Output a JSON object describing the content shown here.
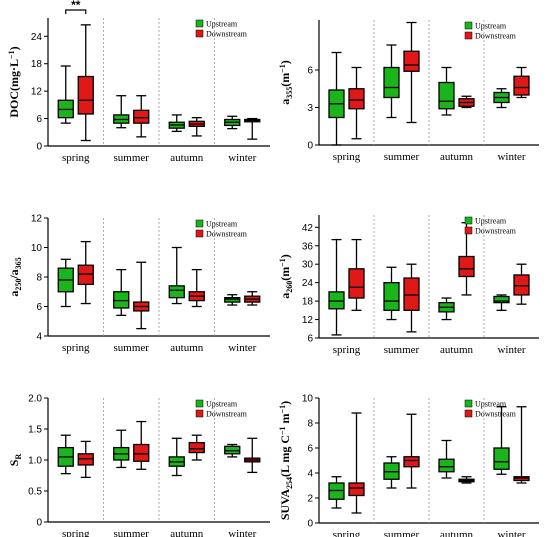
{
  "colors": {
    "upstream": "#1ab51a",
    "downstream": "#e01818",
    "divider": "#999999"
  },
  "chart_data": [
    {
      "type": "box",
      "ylabel": {
        "main": "DOC",
        "sub": "",
        "unit": "(mg·L",
        "unit_sup": "−1",
        "unit_end": ")"
      },
      "categories": [
        "spring",
        "summer",
        "autumn",
        "winter"
      ],
      "ylim": [
        0,
        28
      ],
      "yticks": [
        0,
        6,
        12,
        18,
        24
      ],
      "legend": {
        "entries": [
          "Upstream",
          "Downstream"
        ],
        "placement": "top-right"
      },
      "annotation": {
        "text": "**",
        "category": "spring"
      },
      "series": [
        {
          "name": "Upstream",
          "boxes": [
            {
              "min": 5.0,
              "q1": 6.2,
              "median": 8.0,
              "q3": 10.0,
              "max": 17.5
            },
            {
              "min": 4.0,
              "q1": 5.0,
              "median": 5.8,
              "q3": 6.8,
              "max": 11.0
            },
            {
              "min": 3.2,
              "q1": 3.9,
              "median": 4.6,
              "q3": 5.2,
              "max": 6.8
            },
            {
              "min": 3.8,
              "q1": 4.5,
              "median": 5.2,
              "q3": 5.8,
              "max": 6.5
            }
          ]
        },
        {
          "name": "Downstream",
          "boxes": [
            {
              "min": 1.2,
              "q1": 7.0,
              "median": 10.0,
              "q3": 15.2,
              "max": 26.5
            },
            {
              "min": 2.0,
              "q1": 5.0,
              "median": 6.2,
              "q3": 7.8,
              "max": 11.0
            },
            {
              "min": 2.2,
              "q1": 4.3,
              "median": 4.8,
              "q3": 5.4,
              "max": 6.2
            },
            {
              "min": 1.5,
              "q1": 5.3,
              "median": 5.6,
              "q3": 5.8,
              "max": 6.0
            }
          ]
        }
      ]
    },
    {
      "type": "box",
      "ylabel": {
        "main": "a",
        "sub": "355",
        "unit": "(m",
        "unit_sup": "−1",
        "unit_end": ")"
      },
      "categories": [
        "spring",
        "summer",
        "autumn",
        "winter"
      ],
      "ylim": [
        0,
        10
      ],
      "yticks": [
        0,
        3,
        6
      ],
      "legend": {
        "entries": [
          "Upstream",
          "Downstream"
        ],
        "placement": "top-right"
      },
      "series": [
        {
          "name": "Upstream",
          "boxes": [
            {
              "min": 0.0,
              "q1": 2.2,
              "median": 3.3,
              "q3": 4.4,
              "max": 7.4
            },
            {
              "min": 2.2,
              "q1": 3.8,
              "median": 4.6,
              "q3": 6.2,
              "max": 8.0
            },
            {
              "min": 2.4,
              "q1": 2.9,
              "median": 3.5,
              "q3": 5.0,
              "max": 6.2
            },
            {
              "min": 3.0,
              "q1": 3.4,
              "median": 3.8,
              "q3": 4.2,
              "max": 4.5
            }
          ]
        },
        {
          "name": "Downstream",
          "boxes": [
            {
              "min": 0.5,
              "q1": 2.9,
              "median": 3.6,
              "q3": 4.5,
              "max": 6.2
            },
            {
              "min": 1.8,
              "q1": 5.9,
              "median": 6.4,
              "q3": 7.5,
              "max": 9.8
            },
            {
              "min": 3.0,
              "q1": 3.1,
              "median": 3.4,
              "q3": 3.7,
              "max": 3.9
            },
            {
              "min": 3.8,
              "q1": 4.0,
              "median": 4.6,
              "q3": 5.5,
              "max": 6.2
            }
          ]
        }
      ]
    },
    {
      "type": "box",
      "ylabel": {
        "main": "a",
        "sub": "250",
        "slash": "/a",
        "sub2": "365",
        "unit": "",
        "unit_sup": "",
        "unit_end": ""
      },
      "categories": [
        "spring",
        "summer",
        "autumn",
        "winter"
      ],
      "ylim": [
        4,
        12
      ],
      "yticks": [
        4,
        6,
        8,
        10,
        12
      ],
      "legend": {
        "entries": [
          "Upstream",
          "Downstream"
        ],
        "placement": "top-right"
      },
      "series": [
        {
          "name": "Upstream",
          "boxes": [
            {
              "min": 6.0,
              "q1": 7.0,
              "median": 7.8,
              "q3": 8.6,
              "max": 9.2
            },
            {
              "min": 5.4,
              "q1": 5.9,
              "median": 6.4,
              "q3": 7.0,
              "max": 8.5
            },
            {
              "min": 6.2,
              "q1": 6.6,
              "median": 7.1,
              "q3": 7.4,
              "max": 10.0
            },
            {
              "min": 6.1,
              "q1": 6.3,
              "median": 6.5,
              "q3": 6.6,
              "max": 6.8
            }
          ]
        },
        {
          "name": "Downstream",
          "boxes": [
            {
              "min": 6.2,
              "q1": 7.5,
              "median": 8.2,
              "q3": 8.8,
              "max": 10.4
            },
            {
              "min": 4.5,
              "q1": 5.7,
              "median": 6.0,
              "q3": 6.3,
              "max": 9.0
            },
            {
              "min": 6.0,
              "q1": 6.4,
              "median": 6.7,
              "q3": 7.0,
              "max": 8.5
            },
            {
              "min": 6.1,
              "q1": 6.3,
              "median": 6.5,
              "q3": 6.7,
              "max": 7.0
            }
          ]
        }
      ]
    },
    {
      "type": "box",
      "ylabel": {
        "main": "a",
        "sub": "260",
        "unit": "(m",
        "unit_sup": "−1",
        "unit_end": ")"
      },
      "categories": [
        "spring",
        "summer",
        "autumn",
        "winter"
      ],
      "ylim": [
        6,
        46
      ],
      "yticks": [
        6,
        12,
        18,
        24,
        30,
        36,
        42
      ],
      "legend": {
        "entries": [
          "Upstream",
          "Downstream"
        ],
        "placement": "top-right"
      },
      "series": [
        {
          "name": "Upstream",
          "boxes": [
            {
              "min": 7.0,
              "q1": 15.5,
              "median": 18.0,
              "q3": 21.0,
              "max": 38.0
            },
            {
              "min": 12.0,
              "q1": 15.0,
              "median": 18.0,
              "q3": 24.0,
              "max": 29.0
            },
            {
              "min": 12.0,
              "q1": 14.5,
              "median": 16.0,
              "q3": 17.5,
              "max": 19.0
            },
            {
              "min": 15.0,
              "q1": 17.5,
              "median": 18.0,
              "q3": 19.5,
              "max": 20.0
            }
          ]
        },
        {
          "name": "Downstream",
          "boxes": [
            {
              "min": 15.0,
              "q1": 19.0,
              "median": 22.5,
              "q3": 28.5,
              "max": 38.0
            },
            {
              "min": 8.0,
              "q1": 15.0,
              "median": 20.0,
              "q3": 25.5,
              "max": 30.0
            },
            {
              "min": 20.0,
              "q1": 26.0,
              "median": 28.5,
              "q3": 32.5,
              "max": 43.5
            },
            {
              "min": 17.0,
              "q1": 20.0,
              "median": 23.0,
              "q3": 26.5,
              "max": 30.0
            }
          ]
        }
      ]
    },
    {
      "type": "box",
      "ylabel": {
        "main": "S",
        "sub": "R",
        "unit": "",
        "unit_sup": "",
        "unit_end": ""
      },
      "categories": [
        "spring",
        "summer",
        "autumn",
        "winter"
      ],
      "ylim": [
        0,
        2.0
      ],
      "yticks": [
        0,
        0.5,
        1.0,
        1.5,
        2.0
      ],
      "ytick_labels": [
        "0",
        "0.5",
        "1.0",
        "1.5",
        "2.0"
      ],
      "legend": {
        "entries": [
          "Upstream",
          "Downstream"
        ],
        "placement": "top-right"
      },
      "series": [
        {
          "name": "Upstream",
          "boxes": [
            {
              "min": 0.78,
              "q1": 0.9,
              "median": 1.05,
              "q3": 1.2,
              "max": 1.4
            },
            {
              "min": 0.88,
              "q1": 1.0,
              "median": 1.1,
              "q3": 1.2,
              "max": 1.48
            },
            {
              "min": 0.75,
              "q1": 0.9,
              "median": 0.97,
              "q3": 1.05,
              "max": 1.35
            },
            {
              "min": 1.05,
              "q1": 1.1,
              "median": 1.15,
              "q3": 1.22,
              "max": 1.25
            }
          ]
        },
        {
          "name": "Downstream",
          "boxes": [
            {
              "min": 0.72,
              "q1": 0.92,
              "median": 1.02,
              "q3": 1.1,
              "max": 1.3
            },
            {
              "min": 0.85,
              "q1": 0.98,
              "median": 1.1,
              "q3": 1.25,
              "max": 1.62
            },
            {
              "min": 1.0,
              "q1": 1.12,
              "median": 1.18,
              "q3": 1.28,
              "max": 1.4
            },
            {
              "min": 0.8,
              "q1": 0.97,
              "median": 1.0,
              "q3": 1.03,
              "max": 1.35
            }
          ]
        }
      ]
    },
    {
      "type": "box",
      "ylabel": {
        "main": "SUVA",
        "sub": "254",
        "unit": "(L mg C",
        "unit_sup": "−1",
        "unit_mid": " m",
        "unit_sup2": "−1",
        "unit_end": ")"
      },
      "categories": [
        "spring",
        "summer",
        "autumn",
        "winter"
      ],
      "ylim": [
        0,
        10
      ],
      "yticks": [
        0,
        2,
        4,
        6,
        8,
        10
      ],
      "legend": {
        "entries": [
          "Upstream",
          "Downstream"
        ],
        "placement": "top-right"
      },
      "series": [
        {
          "name": "Upstream",
          "boxes": [
            {
              "min": 1.2,
              "q1": 1.9,
              "median": 2.6,
              "q3": 3.2,
              "max": 3.7
            },
            {
              "min": 2.8,
              "q1": 3.5,
              "median": 4.1,
              "q3": 4.8,
              "max": 5.3
            },
            {
              "min": 3.6,
              "q1": 4.1,
              "median": 4.5,
              "q3": 5.1,
              "max": 6.6
            },
            {
              "min": 3.9,
              "q1": 4.3,
              "median": 4.9,
              "q3": 6.0,
              "max": 9.3
            }
          ]
        },
        {
          "name": "Downstream",
          "boxes": [
            {
              "min": 0.8,
              "q1": 2.2,
              "median": 2.8,
              "q3": 3.2,
              "max": 8.8
            },
            {
              "min": 2.8,
              "q1": 4.5,
              "median": 5.0,
              "q3": 5.3,
              "max": 8.7
            },
            {
              "min": 3.2,
              "q1": 3.3,
              "median": 3.4,
              "q3": 3.5,
              "max": 3.7
            },
            {
              "min": 3.2,
              "q1": 3.4,
              "median": 3.6,
              "q3": 3.7,
              "max": 9.3
            }
          ]
        }
      ]
    }
  ]
}
